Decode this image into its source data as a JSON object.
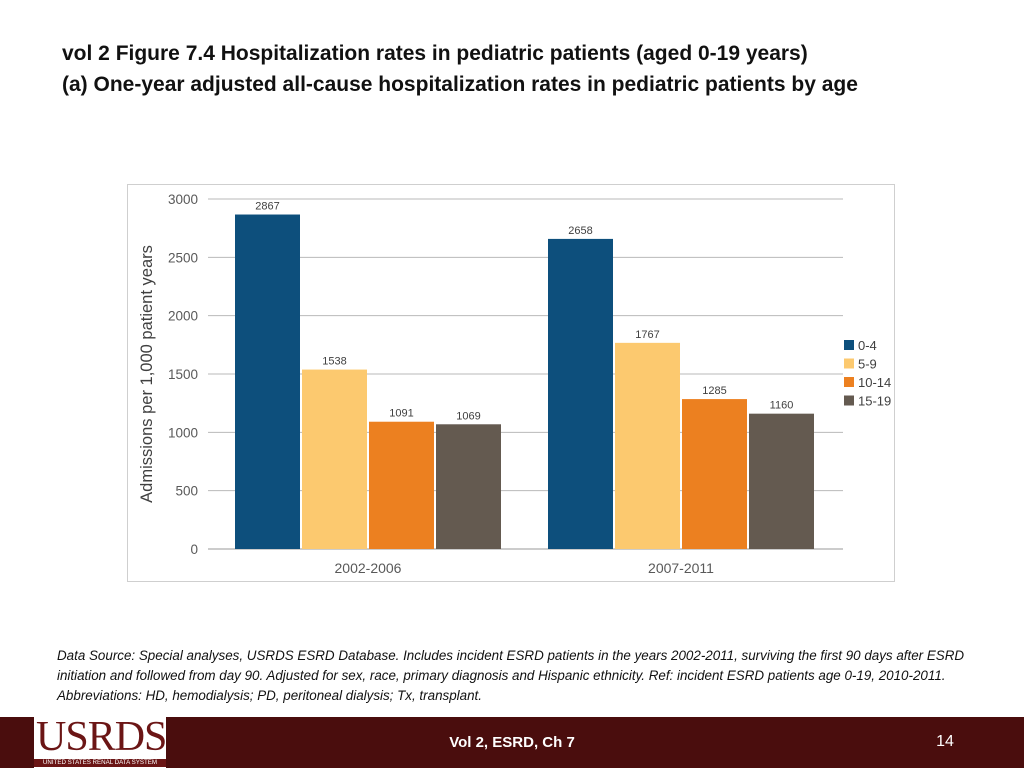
{
  "slide": {
    "title_line1": "vol 2 Figure 7.4 Hospitalization rates in pediatric patients (aged 0-19 years)",
    "title_line2": "(a) One-year adjusted all-cause hospitalization rates in pediatric patients by age",
    "source_note": "Data Source: Special analyses, USRDS ESRD Database. Includes incident ESRD patients in the years 2002-2011, surviving the first 90 days after ESRD initiation and followed from day 90. Adjusted for sex, race, primary diagnosis and Hispanic ethnicity. Ref: incident ESRD patients age 0-19, 2010-2011. Abbreviations: HD, hemodialysis; PD, peritoneal dialysis; Tx, transplant."
  },
  "footer": {
    "logo_text": "USRDS",
    "logo_subtext": "UNITED STATES RENAL DATA SYSTEM",
    "center_text": "Vol 2, ESRD, Ch 7",
    "page_number": "14",
    "background_color": "#4a0d0d"
  },
  "chart_data": {
    "type": "bar",
    "title": "",
    "xlabel": "",
    "ylabel": "Admissions per 1,000 patient years",
    "categories": [
      "2002-2006",
      "2007-2011"
    ],
    "series": [
      {
        "name": "0-4",
        "color": "#0d4f7c",
        "values": [
          2867,
          2658
        ]
      },
      {
        "name": "5-9",
        "color": "#fcc96f",
        "values": [
          1538,
          1767
        ]
      },
      {
        "name": "10-14",
        "color": "#ec8020",
        "values": [
          1091,
          1285
        ]
      },
      {
        "name": "15-19",
        "color": "#645a50",
        "values": [
          1069,
          1160
        ]
      }
    ],
    "ylim": [
      0,
      3000
    ],
    "yticks": [
      0,
      500,
      1000,
      1500,
      2000,
      2500,
      3000
    ],
    "grid": true,
    "legend_position": "right"
  }
}
